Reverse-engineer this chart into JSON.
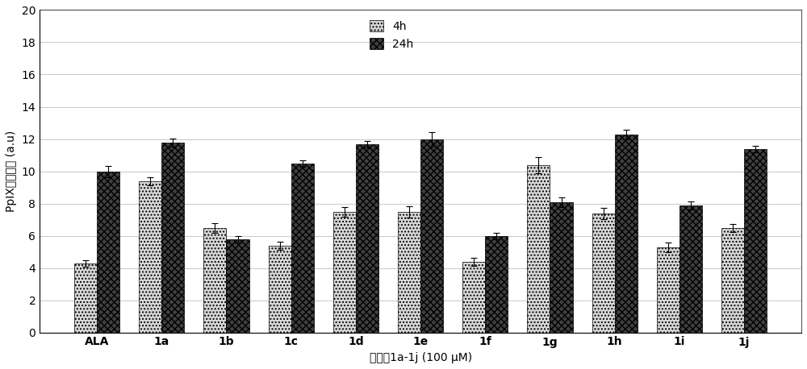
{
  "categories": [
    "ALA",
    "1a",
    "1b",
    "1c",
    "1d",
    "1e",
    "1f",
    "1g",
    "1h",
    "1i",
    "1j"
  ],
  "values_4h": [
    4.3,
    9.4,
    6.5,
    5.4,
    7.5,
    7.5,
    4.4,
    10.4,
    7.4,
    5.3,
    6.5
  ],
  "values_24h": [
    10.0,
    11.8,
    5.8,
    10.5,
    11.7,
    12.0,
    6.0,
    8.1,
    12.3,
    7.9,
    11.4
  ],
  "err_4h": [
    0.2,
    0.25,
    0.3,
    0.25,
    0.3,
    0.35,
    0.25,
    0.5,
    0.35,
    0.3,
    0.25
  ],
  "err_24h": [
    0.35,
    0.25,
    0.2,
    0.2,
    0.2,
    0.45,
    0.2,
    0.3,
    0.3,
    0.25,
    0.2
  ],
  "color_4h": "#d8d8d8",
  "color_24h": "#404040",
  "hatch_4h": "....",
  "hatch_24h": "xxxx",
  "ylabel": "PpIX荧光强度 (a.u)",
  "xlabel": "化合牧1a-1j (100 μM)",
  "ylim": [
    0,
    20
  ],
  "yticks": [
    0,
    2,
    4,
    6,
    8,
    10,
    12,
    14,
    16,
    18,
    20
  ],
  "legend_4h": "4h",
  "legend_24h": "24h",
  "bar_width": 0.35,
  "figsize": [
    10.0,
    4.58
  ],
  "dpi": 100,
  "bg_color": "#f0f0f0"
}
